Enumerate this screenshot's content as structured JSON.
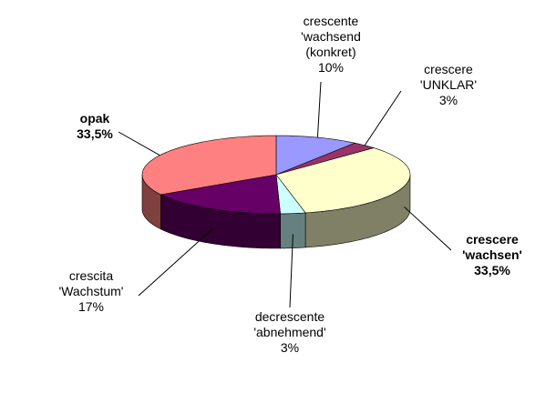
{
  "chart_data": {
    "type": "pie",
    "categories": [
      "crescente\n'wachsend\n(konkret)",
      "crescere\n'UNKLAR'",
      "crescere\n'wachsen'",
      "decrescente\n'abnehmend'",
      "crescita\n'Wachstum'",
      "opak"
    ],
    "values": [
      10,
      3,
      33.5,
      3,
      17,
      33.5
    ],
    "value_labels": [
      "10%",
      "3%",
      "33,5%",
      "3%",
      "17%",
      "33,5%"
    ],
    "colors": [
      "#9999ff",
      "#993366",
      "#ffffcc",
      "#ccffff",
      "#660066",
      "#ff8080"
    ]
  }
}
